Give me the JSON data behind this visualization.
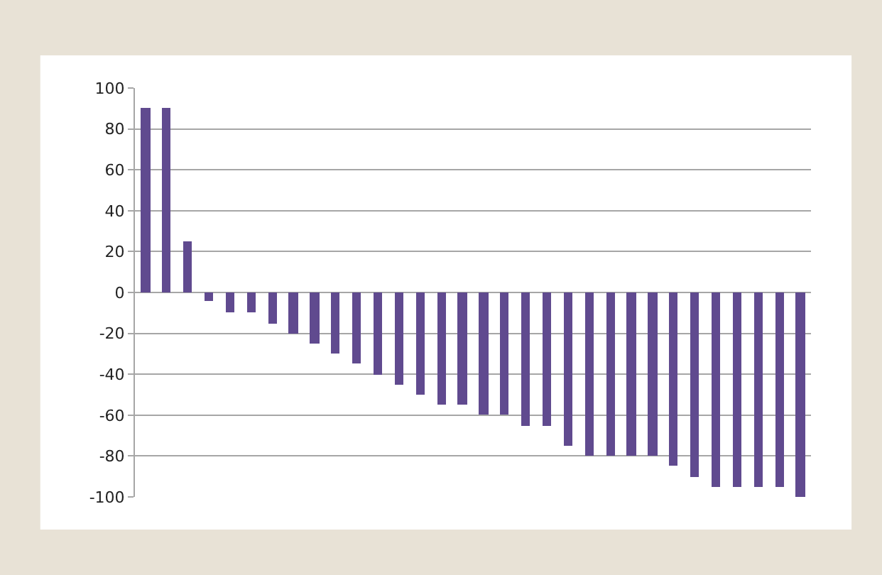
{
  "chart_data": {
    "type": "bar",
    "categories": [
      null,
      null,
      null,
      null,
      null,
      null,
      null,
      null,
      null,
      null,
      null,
      null,
      null,
      null,
      null,
      null,
      null,
      null,
      null,
      null,
      null,
      null,
      null,
      null,
      null,
      null,
      null,
      null,
      null,
      null,
      null,
      null
    ],
    "values": [
      90,
      90,
      25,
      -4,
      -10,
      -10,
      -15,
      -20,
      -25,
      -30,
      -35,
      -40,
      -45,
      -50,
      -55,
      -55,
      -60,
      -60,
      -65,
      -65,
      -75,
      -80,
      -80,
      -80,
      -80,
      -85,
      -90,
      -95,
      -95,
      -95,
      -95,
      -100
    ],
    "color": "#604a8f",
    "ylim": [
      -100,
      100
    ],
    "yticks": [
      -100,
      -80,
      -60,
      -40,
      -20,
      0,
      20,
      40,
      60,
      80,
      100
    ],
    "grid": "y",
    "tick_labels": "y"
  }
}
